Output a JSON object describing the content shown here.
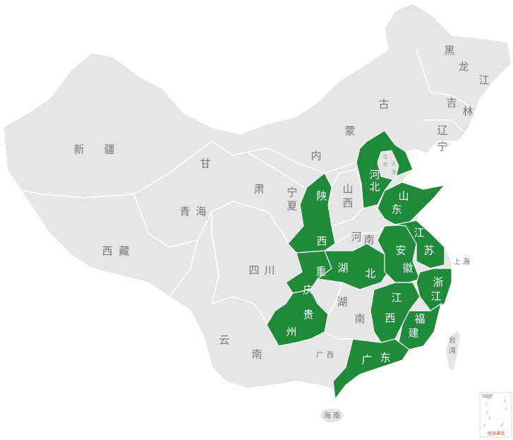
{
  "colors": {
    "highlight": "#1e8a3a",
    "base": "#e6e6e6",
    "border": "#ffffff",
    "label": "#777777",
    "highlight_label": "#ffffff"
  },
  "provinces": [
    {
      "name": "新疆",
      "highlighted": false
    },
    {
      "name": "西藏",
      "highlighted": false
    },
    {
      "name": "青海",
      "highlighted": false
    },
    {
      "name": "甘肃",
      "highlighted": false
    },
    {
      "name": "内蒙古",
      "highlighted": false
    },
    {
      "name": "黑龙江",
      "highlighted": false
    },
    {
      "name": "吉林",
      "highlighted": false
    },
    {
      "name": "辽宁",
      "highlighted": false
    },
    {
      "name": "宁夏",
      "highlighted": false
    },
    {
      "name": "山西",
      "highlighted": false
    },
    {
      "name": "河南",
      "highlighted": false
    },
    {
      "name": "四川",
      "highlighted": false
    },
    {
      "name": "云南",
      "highlighted": false
    },
    {
      "name": "广西",
      "highlighted": false
    },
    {
      "name": "湖南",
      "highlighted": false
    },
    {
      "name": "海南",
      "highlighted": false
    },
    {
      "name": "台湾",
      "highlighted": false
    },
    {
      "name": "上海",
      "highlighted": false
    },
    {
      "name": "北京",
      "highlighted": false
    },
    {
      "name": "天津",
      "highlighted": false
    },
    {
      "name": "河北",
      "highlighted": true
    },
    {
      "name": "山东",
      "highlighted": true
    },
    {
      "name": "陕西",
      "highlighted": true
    },
    {
      "name": "重庆",
      "highlighted": true
    },
    {
      "name": "湖北",
      "highlighted": true
    },
    {
      "name": "贵州",
      "highlighted": true
    },
    {
      "name": "安徽",
      "highlighted": true
    },
    {
      "name": "江苏",
      "highlighted": true
    },
    {
      "name": "浙江",
      "highlighted": true
    },
    {
      "name": "江西",
      "highlighted": true
    },
    {
      "name": "福建",
      "highlighted": true
    },
    {
      "name": "广东",
      "highlighted": true
    }
  ],
  "inset": {
    "label": "南海诸岛"
  }
}
